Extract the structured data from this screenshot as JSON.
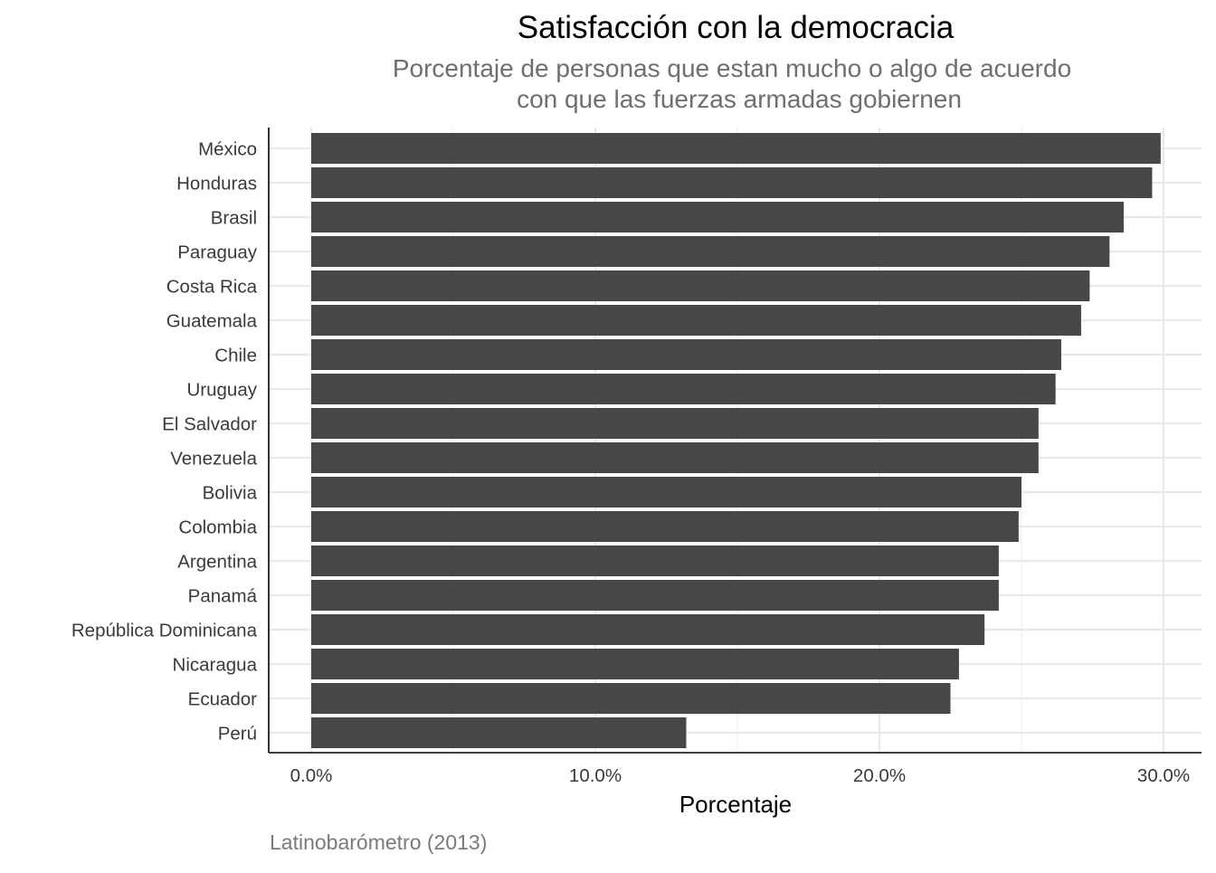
{
  "chart_data": {
    "type": "bar",
    "orientation": "horizontal",
    "title": "Satisfacción con la democracia",
    "subtitle": [
      "Porcentaje de personas que estan mucho o algo de acuerdo",
      "con que las fuerzas armadas gobiernen"
    ],
    "xlabel": "Porcentaje",
    "ylabel": "",
    "caption": "Latinobarómetro (2013)",
    "categories": [
      "México",
      "Honduras",
      "Brasil",
      "Paraguay",
      "Costa Rica",
      "Guatemala",
      "Chile",
      "Uruguay",
      "El Salvador",
      "Venezuela",
      "Bolivia",
      "Colombia",
      "Argentina",
      "Panamá",
      "República Dominicana",
      "Nicaragua",
      "Ecuador",
      "Perú"
    ],
    "values": [
      29.9,
      29.6,
      28.6,
      28.1,
      27.4,
      27.1,
      26.4,
      26.2,
      25.6,
      25.6,
      25.0,
      24.9,
      24.2,
      24.2,
      23.7,
      22.8,
      22.5,
      13.2
    ],
    "x_ticks": [
      0,
      10,
      20,
      30
    ],
    "x_tick_labels": [
      "0.0%",
      "10.0%",
      "20.0%",
      "30.0%"
    ],
    "xlim": [
      -1.5,
      31.5
    ],
    "bar_color": "#474747",
    "grid": true
  }
}
